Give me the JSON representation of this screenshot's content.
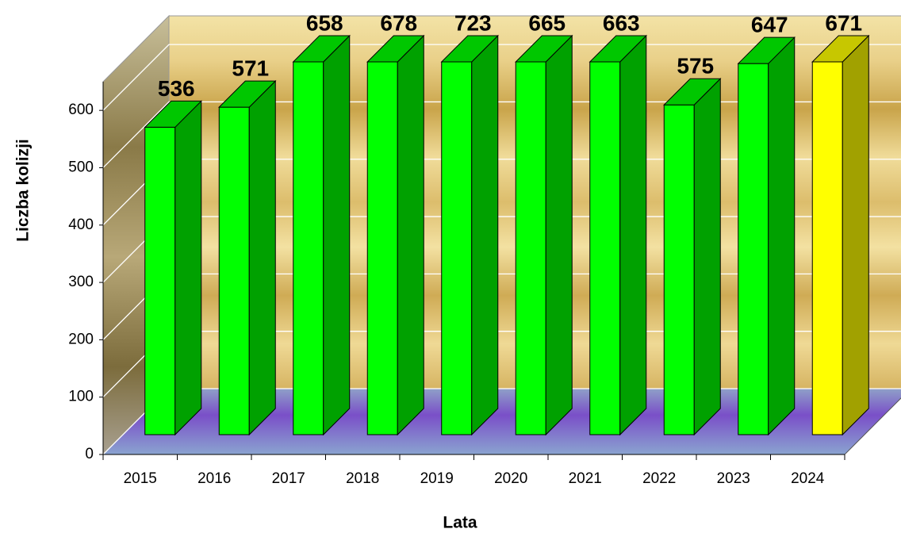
{
  "chart_data": {
    "type": "bar3d",
    "y_label": "Liczba kolizji",
    "x_label": "Lata",
    "categories": [
      "2015",
      "2016",
      "2017",
      "2018",
      "2019",
      "2020",
      "2021",
      "2022",
      "2023",
      "2024"
    ],
    "values": [
      536,
      571,
      658,
      678,
      723,
      665,
      663,
      575,
      647,
      671
    ],
    "colors": [
      "#00ff00",
      "#00ff00",
      "#00ff00",
      "#00ff00",
      "#00ff00",
      "#00ff00",
      "#00ff00",
      "#00ff00",
      "#00ff00",
      "#ffff00"
    ],
    "ylim": [
      0,
      650
    ],
    "yticks": [
      0,
      100,
      200,
      300,
      400,
      500,
      600
    ],
    "grid": true
  }
}
